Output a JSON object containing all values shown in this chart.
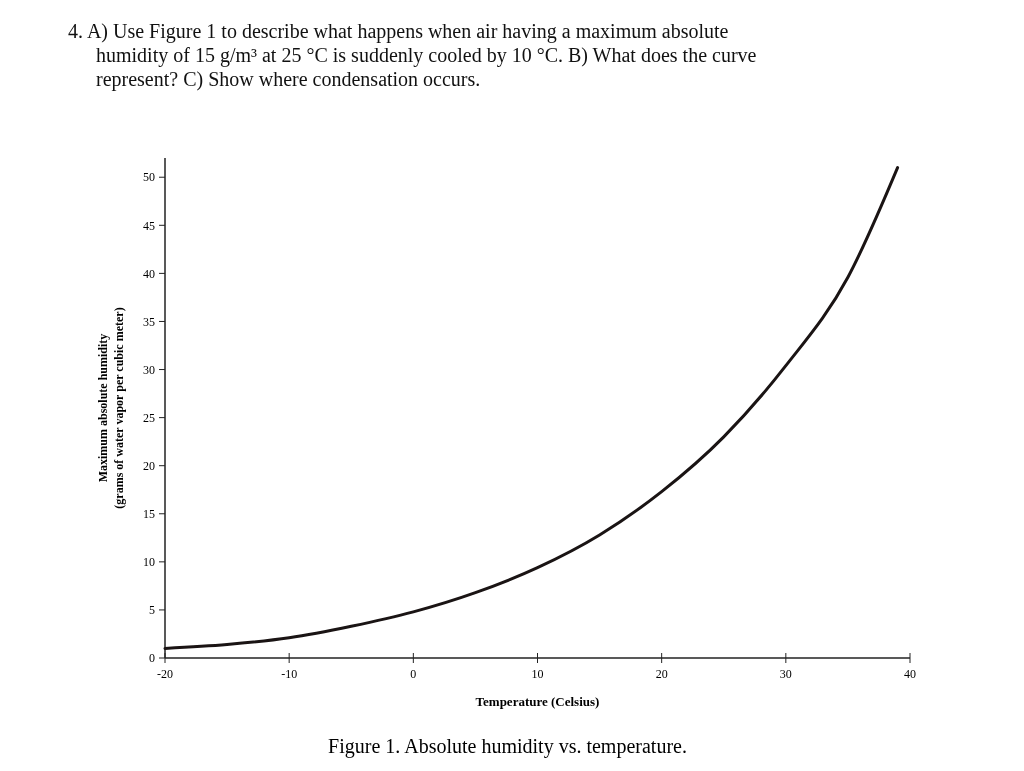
{
  "chart_data": {
    "type": "line",
    "title": "4. A) Use Figure 1 to describe what happens when air having a maximum absolute humidity of 15 g/m³ at 25 °C is suddenly cooled by 10 °C. B) What does the curve represent? C) Show where condensation occurs.",
    "xlabel": "Temperature (Celsius)",
    "ylabel": "Maximum absolute humidity\n(grams of water vapor per cubic meter)",
    "annotations": [
      "Figure 1. Absolute humidity vs. temperature."
    ],
    "x": [
      -20,
      -15,
      -10,
      -5,
      0,
      5,
      10,
      15,
      20,
      25,
      30,
      35,
      39
    ],
    "series": [
      {
        "color": "#1a1414",
        "values": [
          1.0,
          1.4,
          2.1,
          3.3,
          4.8,
          6.8,
          9.4,
          12.8,
          17.3,
          23.0,
          30.4,
          39.6,
          51
        ]
      }
    ],
    "xlim": [
      -20,
      40
    ],
    "xticks": [
      -20,
      -10,
      0,
      10,
      20,
      30,
      40
    ],
    "ylim": [
      0,
      52
    ],
    "yticks": [
      0,
      5,
      10,
      15,
      20,
      25,
      30,
      35,
      40,
      45,
      50
    ],
    "grid": false,
    "marker": "none",
    "line_style": "solid"
  }
}
